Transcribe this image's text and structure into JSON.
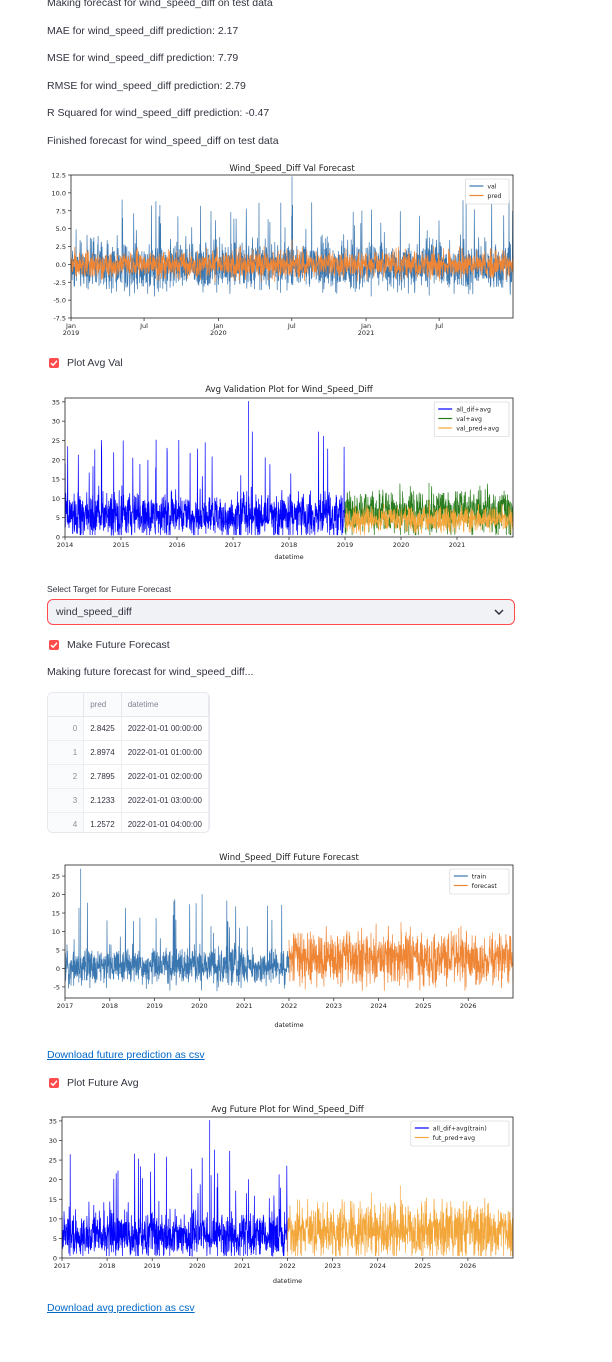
{
  "status": {
    "making_forecast": "Making forecast for wind_speed_diff on test data",
    "mae": "MAE for wind_speed_diff prediction: 2.17",
    "mse": "MSE for wind_speed_diff prediction: 7.79",
    "rmse": "RMSE for wind_speed_diff prediction: 2.79",
    "r2": "R Squared for wind_speed_diff prediction: -0.47",
    "finished": "Finished forecast for wind_speed_diff on test data",
    "making_future": "Making future forecast for wind_speed_diff..."
  },
  "controls": {
    "plot_avg_val": "Plot Avg Val",
    "select_label": "Select Target for Future Forecast",
    "select_value": "wind_speed_diff",
    "make_future": "Make Future Forecast",
    "plot_future_avg": "Plot Future Avg",
    "download_future": "Download future prediction as csv",
    "download_avg": "Download avg prediction as csv",
    "accent": "#ff4b4b",
    "link_color": "#0068c9"
  },
  "table": {
    "columns": [
      "",
      "pred",
      "datetime"
    ],
    "rows": [
      [
        "0",
        "2.8425",
        "2022-01-01 00:00:00"
      ],
      [
        "1",
        "2.8974",
        "2022-01-01 01:00:00"
      ],
      [
        "2",
        "2.7895",
        "2022-01-01 02:00:00"
      ],
      [
        "3",
        "2.1233",
        "2022-01-01 03:00:00"
      ],
      [
        "4",
        "1.2572",
        "2022-01-01 04:00:00"
      ]
    ]
  },
  "chart_data": [
    {
      "type": "line",
      "title": "Wind_Speed_Diff Val Forecast",
      "xlabel": "",
      "ylabel": "",
      "xlim": [
        "2019-01-01",
        "2021-12-31"
      ],
      "ylim": [
        -7.5,
        12.5
      ],
      "yticks": [
        -7.5,
        -5.0,
        -2.5,
        0.0,
        2.5,
        5.0,
        7.5,
        10.0,
        12.5
      ],
      "xticks": [
        {
          "pos": "2019-01-01",
          "label": "Jan\n2019"
        },
        {
          "pos": "2019-07-01",
          "label": "Jul"
        },
        {
          "pos": "2020-01-01",
          "label": "Jan\n2020"
        },
        {
          "pos": "2020-07-01",
          "label": "Jul"
        },
        {
          "pos": "2021-01-01",
          "label": "Jan\n2021"
        },
        {
          "pos": "2021-07-01",
          "label": "Jul"
        }
      ],
      "legend": "top-right",
      "series": [
        {
          "name": "val",
          "color": "#3a76af",
          "x_start": "2019-01-01",
          "x_end": "2021-12-31",
          "center": -0.2,
          "spread": 2.0,
          "min": -7.3,
          "max": 12.3
        },
        {
          "name": "pred",
          "color": "#ef8636",
          "x_start": "2019-01-01",
          "x_end": "2021-12-31",
          "center": -0.1,
          "spread": 1.1,
          "min": -4.0,
          "max": 3.5
        }
      ]
    },
    {
      "type": "line",
      "title": "Avg Validation Plot for Wind_Speed_Diff",
      "xlabel": "datetime",
      "ylabel": "",
      "xlim": [
        2014.0,
        2022.0
      ],
      "ylim": [
        0,
        36
      ],
      "yticks": [
        0,
        5,
        10,
        15,
        20,
        25,
        30,
        35
      ],
      "xticks": [
        2014,
        2015,
        2016,
        2017,
        2018,
        2019,
        2020,
        2021
      ],
      "legend": "top-right",
      "series": [
        {
          "name": "all_dif+avg",
          "color": "#0000ff",
          "x_start": 2014.0,
          "x_end": 2019.0,
          "center": 5.5,
          "spread": 3.5,
          "min": 0.5,
          "max": 35.2
        },
        {
          "name": "val+avg",
          "color": "#2a7d1e",
          "x_start": 2019.0,
          "x_end": 2022.0,
          "center": 6.5,
          "spread": 3.5,
          "min": 0.5,
          "max": 14.0
        },
        {
          "name": "val_pred+avg",
          "color": "#f3a73b",
          "x_start": 2019.0,
          "x_end": 2022.0,
          "center": 4.5,
          "spread": 2.0,
          "min": 0.5,
          "max": 9.5
        }
      ]
    },
    {
      "type": "line",
      "title": "Wind_Speed_Diff Future Forecast",
      "xlabel": "datetime",
      "ylabel": "",
      "xlim": [
        2017.0,
        2027.0
      ],
      "ylim": [
        -8,
        28
      ],
      "yticks": [
        -5,
        0,
        5,
        10,
        15,
        20,
        25
      ],
      "xticks": [
        2017,
        2018,
        2019,
        2020,
        2021,
        2022,
        2023,
        2024,
        2025,
        2026
      ],
      "legend": "top-right",
      "series": [
        {
          "name": "train",
          "color": "#3a76af",
          "x_start": 2017.0,
          "x_end": 2022.0,
          "center": 0.5,
          "spread": 3.0,
          "min": -6.5,
          "max": 27.0
        },
        {
          "name": "forecast",
          "color": "#ef8636",
          "x_start": 2022.0,
          "x_end": 2027.0,
          "center": 2.5,
          "spread": 4.5,
          "min": -6.0,
          "max": 12.5
        }
      ]
    },
    {
      "type": "line",
      "title": "Avg Future Plot for Wind_Speed_Diff",
      "xlabel": "datetime",
      "ylabel": "",
      "xlim": [
        2017.0,
        2027.0
      ],
      "ylim": [
        0,
        36
      ],
      "yticks": [
        0,
        5,
        10,
        15,
        20,
        25,
        30,
        35
      ],
      "xticks": [
        2017,
        2018,
        2019,
        2020,
        2021,
        2022,
        2023,
        2024,
        2025,
        2026
      ],
      "legend": "top-right",
      "series": [
        {
          "name": "all_dif+avg(train)",
          "color": "#0000ff",
          "x_start": 2017.0,
          "x_end": 2022.0,
          "center": 5.5,
          "spread": 3.5,
          "min": 0.5,
          "max": 35.2
        },
        {
          "name": "fut_pred+avg",
          "color": "#f3a73b",
          "x_start": 2022.0,
          "x_end": 2027.0,
          "center": 7.0,
          "spread": 4.5,
          "min": 0.5,
          "max": 18.5
        }
      ]
    }
  ]
}
